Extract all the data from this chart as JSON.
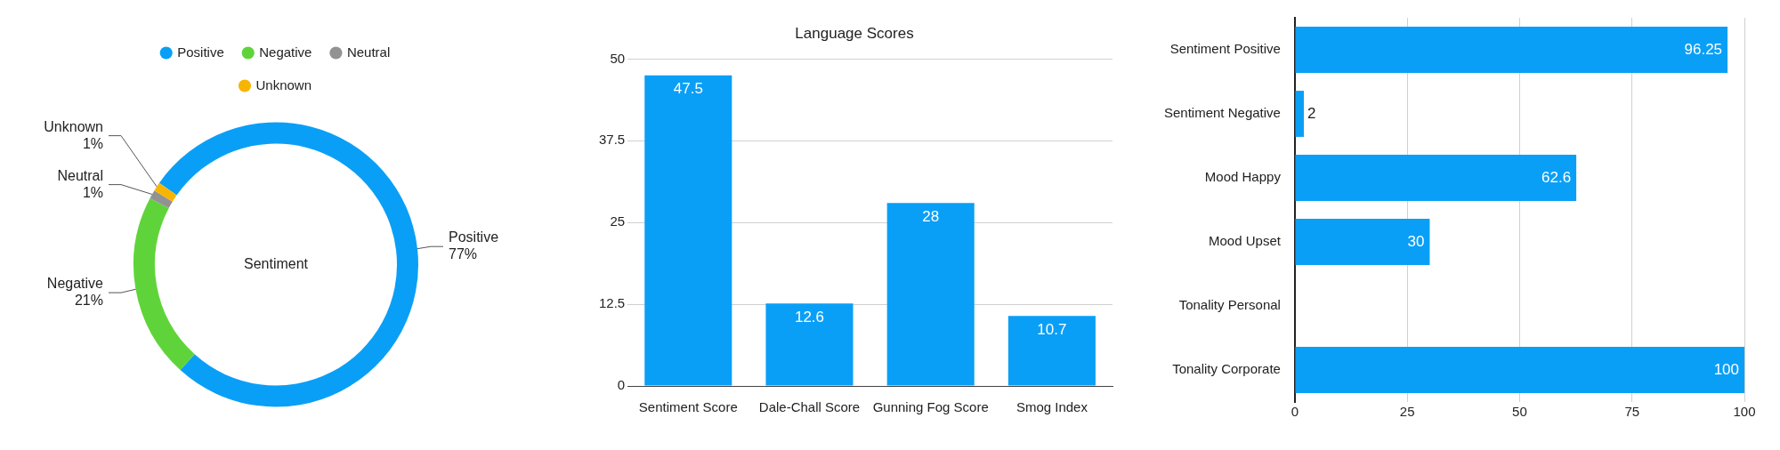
{
  "chart_data": [
    {
      "type": "donut",
      "categories": [
        "Positive",
        "Negative",
        "Neutral",
        "Unknown"
      ],
      "values": [
        77,
        21,
        1,
        1
      ],
      "value_labels": [
        "77%",
        "21%",
        "1%",
        "1%"
      ],
      "colors": [
        "#0a9ff6",
        "#5fd43a",
        "#929292",
        "#f7b500"
      ],
      "legend": "top",
      "annotations": [
        "Sentiment"
      ]
    },
    {
      "type": "bar",
      "title": "Language Scores",
      "categories": [
        "Sentiment Score",
        "Dale-Chall Score",
        "Gunning Fog Score",
        "Smog Index"
      ],
      "values": [
        47.5,
        12.6,
        28,
        10.7
      ],
      "color": "#0a9ff6",
      "ylim": [
        0,
        50
      ],
      "yticks": [
        0,
        12.5,
        25,
        37.5,
        50
      ],
      "grid": "y",
      "data_labels": true
    },
    {
      "type": "bar",
      "orientation": "horizontal",
      "categories": [
        "Sentiment Positive",
        "Sentiment Negative",
        "Mood Happy",
        "Mood Upset",
        "Tonality Personal",
        "Tonality Corporate"
      ],
      "values": [
        96.25,
        2,
        62.6,
        30,
        0,
        100
      ],
      "value_labels": [
        "96.25",
        "2",
        "62.6",
        "30",
        null,
        "100"
      ],
      "color": "#0a9ff6",
      "xlim": [
        0,
        100
      ],
      "xticks": [
        0,
        25,
        50,
        75,
        100
      ],
      "grid": "x"
    }
  ]
}
